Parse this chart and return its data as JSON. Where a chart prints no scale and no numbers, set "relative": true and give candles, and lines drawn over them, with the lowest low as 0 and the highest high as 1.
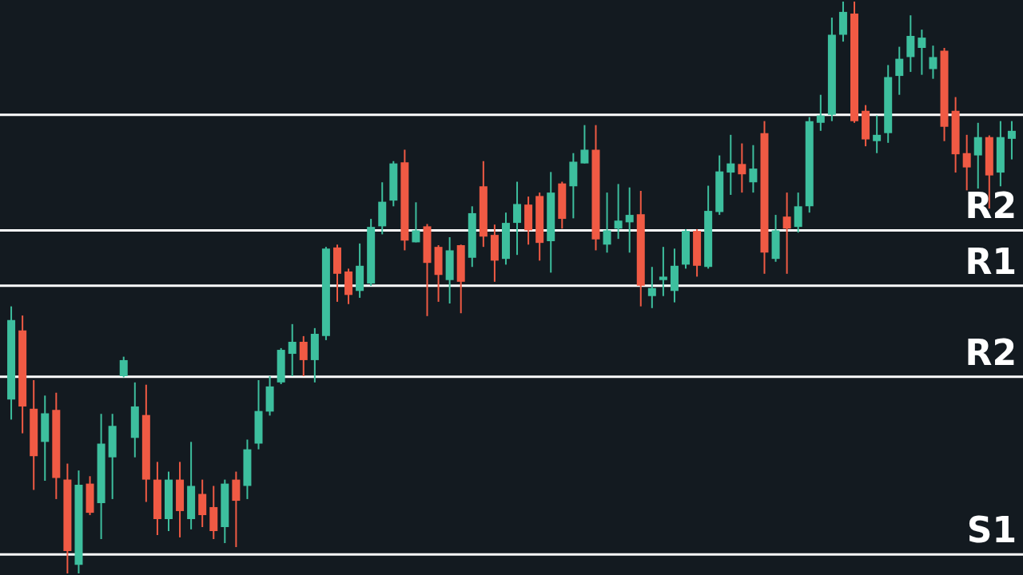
{
  "chart_data": {
    "type": "candlestick",
    "relative": true,
    "categories": [
      null,
      null,
      null,
      null,
      null,
      null,
      null,
      null,
      null,
      null,
      null,
      null,
      null,
      null,
      null,
      null,
      null,
      null,
      null,
      null,
      null,
      null,
      null,
      null,
      null,
      null,
      null,
      null,
      null,
      null,
      null,
      null,
      null,
      null,
      null,
      null,
      null,
      null,
      null,
      null,
      null,
      null,
      null,
      null,
      null,
      null,
      null,
      null,
      null,
      null,
      null,
      null,
      null,
      null,
      null,
      null,
      null,
      null,
      null,
      null,
      null,
      null,
      null,
      null,
      null,
      null,
      null,
      null,
      null,
      null,
      null,
      null,
      null,
      null,
      null,
      null,
      null,
      null,
      null,
      null,
      null,
      null,
      null,
      null,
      null,
      null,
      null,
      null,
      null,
      null
    ],
    "ohlc": [
      [
        0.304,
        0.467,
        0.269,
        0.443
      ],
      [
        0.425,
        0.451,
        0.245,
        0.292
      ],
      [
        0.288,
        0.338,
        0.146,
        0.205
      ],
      [
        0.23,
        0.311,
        0.162,
        0.28
      ],
      [
        0.286,
        0.316,
        0.13,
        0.167
      ],
      [
        0.164,
        0.192,
        0,
        0.039
      ],
      [
        0.015,
        0.18,
        0,
        0.155
      ],
      [
        0.157,
        0.17,
        0.102,
        0.106
      ],
      [
        0.123,
        0.279,
        0.06,
        0.227
      ],
      [
        0.203,
        0.279,
        0.13,
        0.258
      ],
      [
        0.345,
        0.379,
        0.343,
        0.373
      ],
      [
        0.237,
        0.334,
        0.203,
        0.292
      ],
      [
        0.277,
        0.33,
        0.125,
        0.164
      ],
      [
        0.164,
        0.195,
        0.067,
        0.095
      ],
      [
        0.095,
        0.178,
        0.074,
        0.164
      ],
      [
        0.164,
        0.195,
        0.063,
        0.109
      ],
      [
        0.095,
        0.23,
        0.077,
        0.153
      ],
      [
        0.139,
        0.164,
        0.081,
        0.102
      ],
      [
        0.116,
        0.153,
        0.06,
        0.074
      ],
      [
        0.081,
        0.164,
        0.053,
        0.157
      ],
      [
        0.164,
        0.178,
        0.046,
        0.127
      ],
      [
        0.153,
        0.234,
        0.13,
        0.217
      ],
      [
        0.227,
        0.338,
        0.217,
        0.284
      ],
      [
        0.283,
        0.345,
        0.276,
        0.327
      ],
      [
        0.334,
        0.394,
        0.331,
        0.391
      ],
      [
        0.384,
        0.436,
        0.345,
        0.405
      ],
      [
        0.405,
        0.415,
        0.345,
        0.373
      ],
      [
        0.373,
        0.429,
        0.334,
        0.419
      ],
      [
        0.415,
        0.571,
        0.408,
        0.568
      ],
      [
        0.57,
        0.575,
        0.475,
        0.524
      ],
      [
        0.528,
        0.533,
        0.471,
        0.487
      ],
      [
        0.494,
        0.577,
        0.482,
        0.538
      ],
      [
        0.507,
        0.62,
        0.503,
        0.606
      ],
      [
        0.607,
        0.684,
        0.593,
        0.65
      ],
      [
        0.652,
        0.721,
        0.642,
        0.717
      ],
      [
        0.719,
        0.741,
        0.565,
        0.582
      ],
      [
        0.579,
        0.649,
        0.579,
        0.6
      ],
      [
        0.607,
        0.611,
        0.45,
        0.543
      ],
      [
        0.571,
        0.574,
        0.475,
        0.522
      ],
      [
        0.513,
        0.588,
        0.472,
        0.565
      ],
      [
        0.574,
        0.575,
        0.455,
        0.51
      ],
      [
        0.552,
        0.642,
        0.536,
        0.63
      ],
      [
        0.677,
        0.721,
        0.571,
        0.589
      ],
      [
        0.592,
        0.61,
        0.51,
        0.547
      ],
      [
        0.55,
        0.631,
        0.54,
        0.613
      ],
      [
        0.613,
        0.685,
        0.557,
        0.646
      ],
      [
        0.645,
        0.659,
        0.575,
        0.6
      ],
      [
        0.66,
        0.666,
        0.547,
        0.578
      ],
      [
        0.581,
        0.702,
        0.526,
        0.666
      ],
      [
        0.682,
        0.685,
        0.603,
        0.62
      ],
      [
        0.677,
        0.735,
        0.621,
        0.72
      ],
      [
        0.717,
        0.784,
        0.717,
        0.741
      ],
      [
        0.741,
        0.784,
        0.565,
        0.584
      ],
      [
        0.575,
        0.666,
        0.561,
        0.6
      ],
      [
        0.603,
        0.681,
        0.585,
        0.617
      ],
      [
        0.614,
        0.675,
        0.561,
        0.627
      ],
      [
        0.628,
        0.669,
        0.467,
        0.503
      ],
      [
        0.485,
        0.536,
        0.464,
        0.499
      ],
      [
        0.513,
        0.571,
        0.485,
        0.519
      ],
      [
        0.494,
        0.568,
        0.474,
        0.538
      ],
      [
        0.54,
        0.602,
        0.533,
        0.599
      ],
      [
        0.599,
        0.602,
        0.519,
        0.538
      ],
      [
        0.536,
        0.678,
        0.533,
        0.634
      ],
      [
        0.632,
        0.731,
        0.627,
        0.703
      ],
      [
        0.701,
        0.767,
        0.662,
        0.717
      ],
      [
        0.716,
        0.752,
        0.666,
        0.698
      ],
      [
        0.684,
        0.749,
        0.666,
        0.708
      ],
      [
        0.77,
        0.791,
        0.524,
        0.561
      ],
      [
        0.55,
        0.627,
        0.545,
        0.6
      ],
      [
        0.624,
        0.666,
        0.524,
        0.603
      ],
      [
        0.606,
        0.666,
        0.596,
        0.642
      ],
      [
        0.642,
        0.798,
        0.631,
        0.791
      ],
      [
        0.788,
        0.837,
        0.774,
        0.801
      ],
      [
        0.802,
        0.972,
        0.791,
        0.942
      ],
      [
        0.942,
        1,
        0.93,
        0.982
      ],
      [
        0.979,
        1,
        0.788,
        0.791
      ],
      [
        0.809,
        0.819,
        0.747,
        0.759
      ],
      [
        0.756,
        0.801,
        0.735,
        0.767
      ],
      [
        0.77,
        0.889,
        0.753,
        0.868
      ],
      [
        0.87,
        0.921,
        0.837,
        0.9
      ],
      [
        0.903,
        0.976,
        0.877,
        0.94
      ],
      [
        0.919,
        0.951,
        0.872,
        0.937
      ],
      [
        0.882,
        0.923,
        0.865,
        0.903
      ],
      [
        0.914,
        0.919,
        0.756,
        0.781
      ],
      [
        0.809,
        0.833,
        0.701,
        0.733
      ],
      [
        0.735,
        0.767,
        0.67,
        0.71
      ],
      [
        0.731,
        0.788,
        0.673,
        0.763
      ],
      [
        0.763,
        0.766,
        0.638,
        0.696
      ],
      [
        0.701,
        0.791,
        0.677,
        0.763
      ],
      [
        0.76,
        0.791,
        0.724,
        0.774
      ]
    ],
    "colors": [
      "#3dbf9e",
      "#f05a44",
      "#f05a44",
      "#3dbf9e",
      "#f05a44",
      "#f05a44",
      "#3dbf9e",
      "#f05a44",
      "#3dbf9e",
      "#3dbf9e",
      "#3dbf9e",
      "#3dbf9e",
      "#f05a44",
      "#f05a44",
      "#3dbf9e",
      "#f05a44",
      "#3dbf9e",
      "#f05a44",
      "#f05a44",
      "#3dbf9e",
      "#f05a44",
      "#3dbf9e",
      "#3dbf9e",
      "#3dbf9e",
      "#3dbf9e",
      "#3dbf9e",
      "#f05a44",
      "#3dbf9e",
      "#3dbf9e",
      "#f05a44",
      "#f05a44",
      "#3dbf9e",
      "#3dbf9e",
      "#3dbf9e",
      "#3dbf9e",
      "#f05a44",
      "#3dbf9e",
      "#f05a44",
      "#f05a44",
      "#3dbf9e",
      "#f05a44",
      "#3dbf9e",
      "#f05a44",
      "#f05a44",
      "#3dbf9e",
      "#3dbf9e",
      "#f05a44",
      "#f05a44",
      "#3dbf9e",
      "#f05a44",
      "#3dbf9e",
      "#3dbf9e",
      "#f05a44",
      "#3dbf9e",
      "#3dbf9e",
      "#3dbf9e",
      "#f05a44",
      "#3dbf9e",
      "#3dbf9e",
      "#3dbf9e",
      "#3dbf9e",
      "#f05a44",
      "#3dbf9e",
      "#3dbf9e",
      "#3dbf9e",
      "#f05a44",
      "#3dbf9e",
      "#f05a44",
      "#3dbf9e",
      "#f05a44",
      "#3dbf9e",
      "#3dbf9e",
      "#3dbf9e",
      "#3dbf9e",
      "#3dbf9e",
      "#f05a44",
      "#f05a44",
      "#3dbf9e",
      "#3dbf9e",
      "#3dbf9e",
      "#3dbf9e",
      "#3dbf9e",
      "#3dbf9e",
      "#f05a44",
      "#f05a44",
      "#f05a44",
      "#3dbf9e",
      "#f05a44",
      "#3dbf9e",
      "#3dbf9e"
    ],
    "ref_lines": [
      {
        "axis": "y",
        "value": 0.802,
        "label": null,
        "color": "#ffffff"
      },
      {
        "axis": "y",
        "value": 0.6,
        "label": "R2",
        "color": "#ffffff"
      },
      {
        "axis": "y",
        "value": 0.503,
        "label": "R1",
        "color": "#ffffff"
      },
      {
        "axis": "y",
        "value": 0.344,
        "label": "R2",
        "color": "#ffffff"
      },
      {
        "axis": "y",
        "value": 0.033,
        "label": "S1",
        "color": "#ffffff"
      }
    ]
  }
}
